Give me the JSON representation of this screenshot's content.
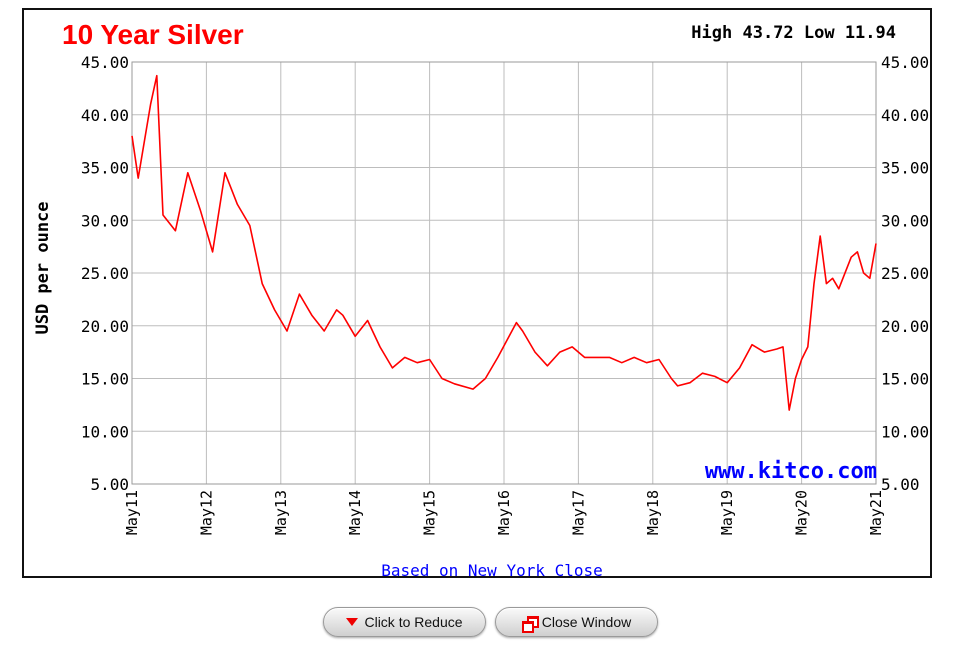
{
  "chart_data": {
    "type": "line",
    "title": "10 Year Silver",
    "high_low": "High 43.72 Low 11.94",
    "ylabel": "USD per ounce",
    "xlabel": "Based on New York Close",
    "watermark": "www.kitco.com",
    "ylim": [
      5,
      45
    ],
    "y_ticks": [
      "45.00",
      "40.00",
      "35.00",
      "30.00",
      "25.00",
      "20.00",
      "15.00",
      "10.00",
      "5.00"
    ],
    "x_ticks": [
      "May11",
      "May12",
      "May13",
      "May14",
      "May15",
      "May16",
      "May17",
      "May18",
      "May19",
      "May20",
      "May21"
    ],
    "grid": true,
    "series": [
      {
        "color": "#ff0000",
        "x": [
          "2011-05",
          "2011-06",
          "2011-08",
          "2011-09",
          "2011-10",
          "2011-12",
          "2012-02",
          "2012-04",
          "2012-06",
          "2012-08",
          "2012-09",
          "2012-10",
          "2012-12",
          "2013-02",
          "2013-04",
          "2013-06",
          "2013-08",
          "2013-10",
          "2013-12",
          "2014-02",
          "2014-03",
          "2014-05",
          "2014-07",
          "2014-09",
          "2014-11",
          "2015-01",
          "2015-03",
          "2015-05",
          "2015-07",
          "2015-09",
          "2015-12",
          "2016-02",
          "2016-04",
          "2016-07",
          "2016-08",
          "2016-10",
          "2016-12",
          "2017-02",
          "2017-04",
          "2017-06",
          "2017-08",
          "2017-10",
          "2017-12",
          "2018-02",
          "2018-04",
          "2018-06",
          "2018-08",
          "2018-09",
          "2018-11",
          "2019-01",
          "2019-03",
          "2019-05",
          "2019-07",
          "2019-09",
          "2019-11",
          "2020-01",
          "2020-02",
          "2020-03",
          "2020-04",
          "2020-05",
          "2020-06",
          "2020-07",
          "2020-08",
          "2020-09",
          "2020-10",
          "2020-11",
          "2021-01",
          "2021-02",
          "2021-03",
          "2021-04",
          "2021-05"
        ],
        "values": [
          38.0,
          34.0,
          41.0,
          43.7,
          30.5,
          29.0,
          34.5,
          31.0,
          27.0,
          34.5,
          33.0,
          31.5,
          29.5,
          24.0,
          21.5,
          19.5,
          23.0,
          21.0,
          19.5,
          21.5,
          21.0,
          19.0,
          20.5,
          18.0,
          16.0,
          17.0,
          16.5,
          16.8,
          15.0,
          14.5,
          14.0,
          15.0,
          17.0,
          20.3,
          19.5,
          17.5,
          16.2,
          17.5,
          18.0,
          17.0,
          17.0,
          17.0,
          16.5,
          17.0,
          16.5,
          16.8,
          15.0,
          14.3,
          14.6,
          15.5,
          15.2,
          14.6,
          16.0,
          18.2,
          17.5,
          17.8,
          18.0,
          12.0,
          15.0,
          16.8,
          18.0,
          24.0,
          28.5,
          24.0,
          24.5,
          23.5,
          26.5,
          27.0,
          25.0,
          24.5,
          27.8
        ]
      }
    ]
  },
  "buttons": {
    "reduce_label": "Click to Reduce",
    "close_label": "Close Window"
  }
}
